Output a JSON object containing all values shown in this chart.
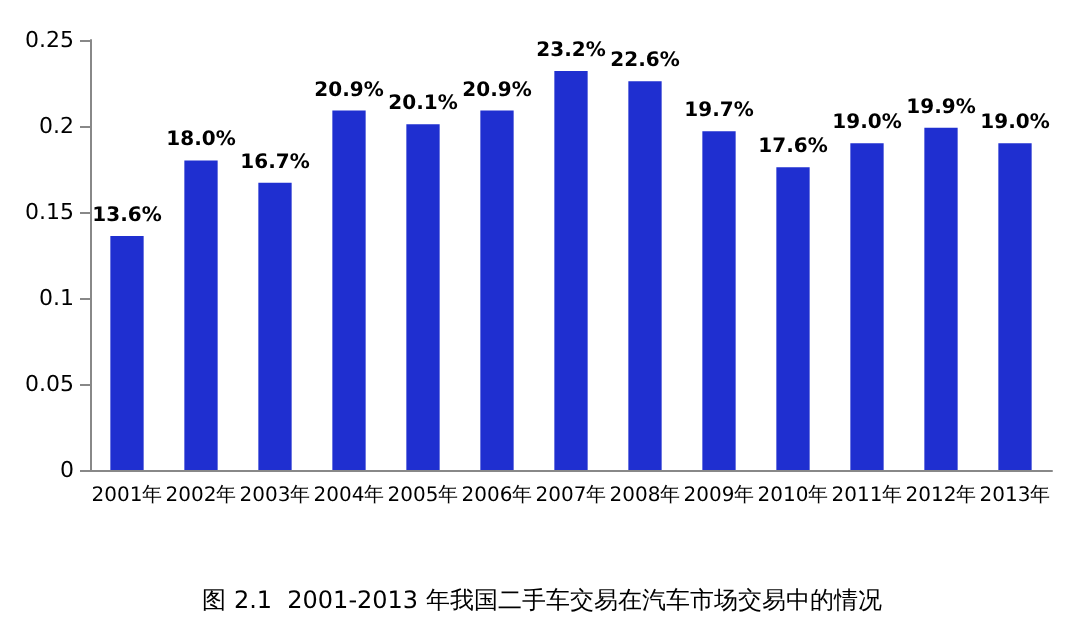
{
  "chart_data": {
    "type": "bar",
    "title": "图 2.1  2001-2013 年我国二手车交易在汽车市场交易中的情况",
    "categories": [
      "2001年",
      "2002年",
      "2003年",
      "2004年",
      "2005年",
      "2006年",
      "2007年",
      "2008年",
      "2009年",
      "2010年",
      "2011年",
      "2012年",
      "2013年"
    ],
    "values": [
      0.136,
      0.18,
      0.167,
      0.209,
      0.201,
      0.209,
      0.232,
      0.226,
      0.197,
      0.176,
      0.19,
      0.199,
      0.19
    ],
    "value_labels": [
      "13.6%",
      "18.0%",
      "16.7%",
      "20.9%",
      "20.1%",
      "20.9%",
      "23.2%",
      "22.6%",
      "19.7%",
      "17.6%",
      "19.0%",
      "19.9%",
      "19.0%"
    ],
    "color": "#1f2fd0",
    "ylim": [
      0,
      0.25
    ],
    "yticks": [
      {
        "value": 0,
        "label": "0"
      },
      {
        "value": 0.05,
        "label": "0.05"
      },
      {
        "value": 0.1,
        "label": "0.1"
      },
      {
        "value": 0.15,
        "label": "0.15"
      },
      {
        "value": 0.2,
        "label": "0.2"
      },
      {
        "value": 0.25,
        "label": "0.25"
      }
    ],
    "grid": false
  }
}
